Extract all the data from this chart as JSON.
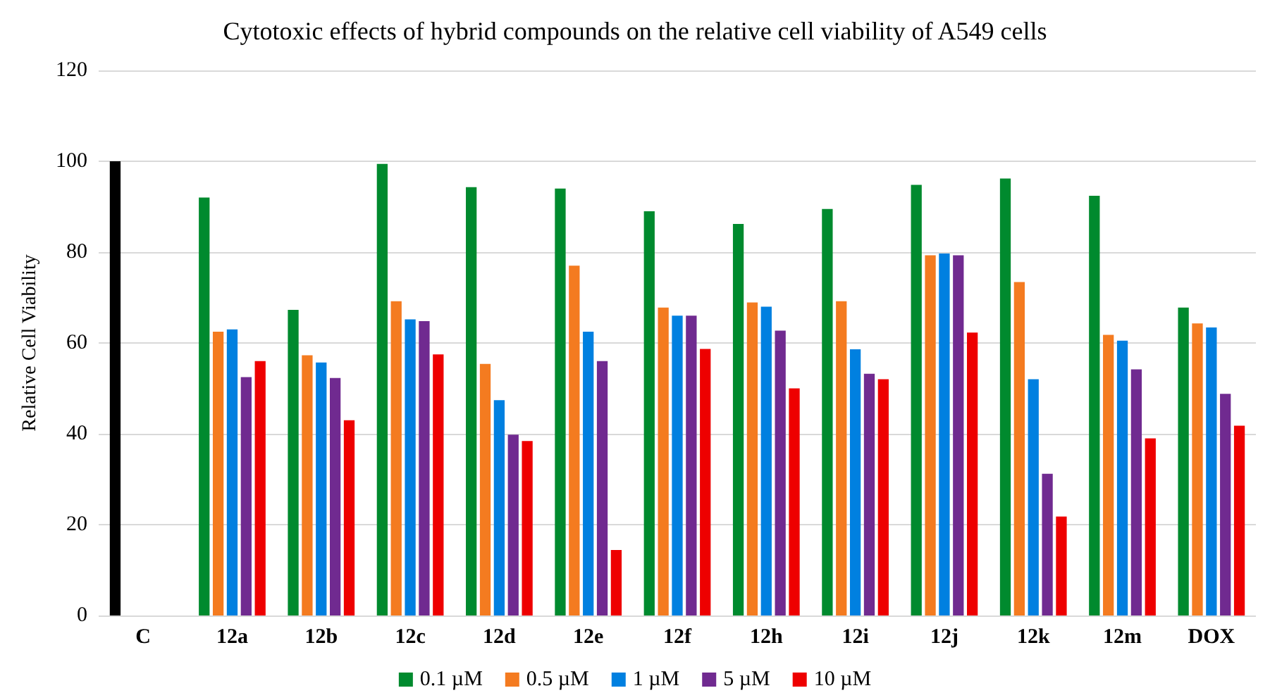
{
  "chart_data": {
    "type": "bar",
    "title": "Cytotoxic effects of hybrid compounds on the relative cell viability of A549 cells",
    "ylabel": "Relative Cell Viability",
    "categories": [
      "C",
      "12a",
      "12b",
      "12c",
      "12d",
      "12e",
      "12f",
      "12h",
      "12i",
      "12j",
      "12k",
      "12m",
      "DOX"
    ],
    "series": [
      {
        "name": "0.1 µM",
        "color": "#008a2e",
        "colors": [
          "#000000",
          "#008a2e",
          "#008a2e",
          "#008a2e",
          "#008a2e",
          "#008a2e",
          "#008a2e",
          "#008a2e",
          "#008a2e",
          "#008a2e",
          "#008a2e",
          "#008a2e",
          "#008a2e"
        ],
        "values": [
          100,
          92,
          67.3,
          99.4,
          94.3,
          94,
          89,
          86.2,
          89.5,
          94.8,
          96.2,
          92.4,
          67.8
        ]
      },
      {
        "name": "0.5 µM",
        "color": "#f47b20",
        "values": [
          null,
          62.5,
          57.3,
          69.2,
          55.4,
          77,
          67.8,
          68.9,
          69.2,
          79.3,
          73.4,
          61.8,
          64.3
        ]
      },
      {
        "name": "1 µM",
        "color": "#0080e0",
        "values": [
          null,
          63,
          55.7,
          65.2,
          47.4,
          62.5,
          66,
          68,
          58.6,
          79.7,
          52,
          60.5,
          63.4
        ]
      },
      {
        "name": "5 µM",
        "color": "#702a90",
        "values": [
          null,
          52.5,
          52.3,
          64.8,
          39.8,
          56,
          66,
          62.7,
          53.2,
          79.3,
          31.2,
          54.2,
          48.8
        ]
      },
      {
        "name": "10 µM",
        "color": "#ee0000",
        "values": [
          null,
          56,
          43,
          57.5,
          38.4,
          14.4,
          58.7,
          50,
          52,
          62.3,
          21.8,
          39,
          41.8
        ]
      }
    ],
    "ylim": [
      0,
      120
    ],
    "yticks": [
      0,
      20,
      40,
      60,
      80,
      100,
      120
    ],
    "grid": "y",
    "legend": "bottom"
  }
}
